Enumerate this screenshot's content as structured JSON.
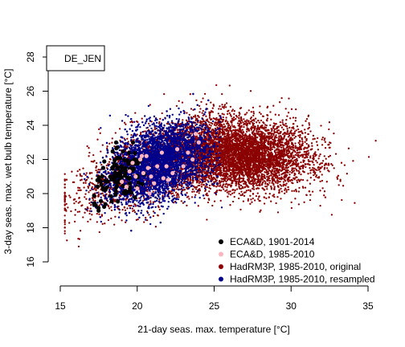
{
  "chart_data": {
    "type": "scatter",
    "title": "",
    "xlabel": "21-day seas. max. temperature [°C]",
    "ylabel": "3-day seas. max. wet bulb temperature [°C]",
    "xlim": [
      15,
      35
    ],
    "ylim": [
      16,
      28
    ],
    "x_ticks": [
      15,
      20,
      25,
      30,
      35
    ],
    "y_ticks": [
      16,
      18,
      20,
      22,
      24,
      26,
      28
    ],
    "grid": false,
    "legend_placement": "bottom-right",
    "annotation": "DE_JEN",
    "series": [
      {
        "name": "HadRM3P, 1985-2010, original",
        "color": "#8b0000",
        "approx_points": 7000,
        "x_range": [
          15.3,
          35.5
        ],
        "y_range": [
          16.9,
          27.2
        ],
        "centroid": [
          26.5,
          22.5
        ]
      },
      {
        "name": "HadRM3P, 1985-2010, resampled",
        "color": "#00008b",
        "approx_points": 4500,
        "x_range": [
          16.5,
          25.5
        ],
        "y_range": [
          17.5,
          26.2
        ],
        "centroid": [
          21.5,
          22.0
        ]
      },
      {
        "name": "ECA&D, 1901-2014",
        "color": "#000000",
        "approx_points": 114,
        "x_range": [
          17.2,
          21.5
        ],
        "y_range": [
          19.0,
          23.0
        ],
        "centroid": [
          19.0,
          21.0
        ]
      },
      {
        "name": "ECA&D, 1985-2010",
        "color": "#ffb6c1",
        "points": [
          {
            "x": 19.0,
            "y": 20.7
          },
          {
            "x": 19.3,
            "y": 20.4
          },
          {
            "x": 19.5,
            "y": 21.3
          },
          {
            "x": 19.7,
            "y": 21.8
          },
          {
            "x": 19.9,
            "y": 21.0
          },
          {
            "x": 20.0,
            "y": 20.3
          },
          {
            "x": 20.2,
            "y": 22.0
          },
          {
            "x": 20.3,
            "y": 22.2
          },
          {
            "x": 20.4,
            "y": 21.2
          },
          {
            "x": 20.6,
            "y": 22.2
          },
          {
            "x": 20.7,
            "y": 21.5
          },
          {
            "x": 20.9,
            "y": 21.0
          },
          {
            "x": 21.1,
            "y": 20.6
          },
          {
            "x": 21.3,
            "y": 21.6
          },
          {
            "x": 21.6,
            "y": 22.4
          },
          {
            "x": 21.7,
            "y": 20.9
          },
          {
            "x": 22.0,
            "y": 20.8
          },
          {
            "x": 22.3,
            "y": 21.2
          },
          {
            "x": 22.6,
            "y": 22.6
          },
          {
            "x": 23.0,
            "y": 21.6
          },
          {
            "x": 23.3,
            "y": 22.4
          },
          {
            "x": 23.6,
            "y": 22.0
          },
          {
            "x": 23.8,
            "y": 23.5
          },
          {
            "x": 24.0,
            "y": 23.0
          },
          {
            "x": 20.8,
            "y": 20.0
          },
          {
            "x": 21.9,
            "y": 21.6
          }
        ]
      }
    ],
    "legend": [
      {
        "label": "ECA&D, 1901-2014",
        "color": "#000000"
      },
      {
        "label": "ECA&D, 1985-2010",
        "color": "#ffb6c1"
      },
      {
        "label": "HadRM3P, 1985-2010, original",
        "color": "#8b0000"
      },
      {
        "label": "HadRM3P, 1985-2010, resampled",
        "color": "#00008b"
      }
    ]
  }
}
